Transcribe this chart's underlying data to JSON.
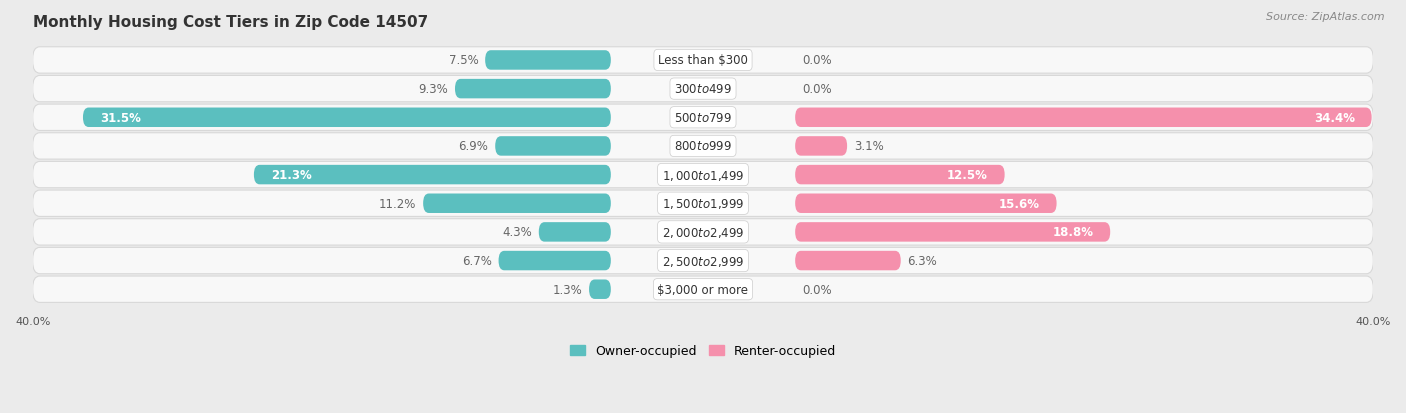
{
  "title": "Monthly Housing Cost Tiers in Zip Code 14507",
  "source": "Source: ZipAtlas.com",
  "categories": [
    "Less than $300",
    "$300 to $499",
    "$500 to $799",
    "$800 to $999",
    "$1,000 to $1,499",
    "$1,500 to $1,999",
    "$2,000 to $2,499",
    "$2,500 to $2,999",
    "$3,000 or more"
  ],
  "owner_values": [
    7.5,
    9.3,
    31.5,
    6.9,
    21.3,
    11.2,
    4.3,
    6.7,
    1.3
  ],
  "renter_values": [
    0.0,
    0.0,
    34.4,
    3.1,
    12.5,
    15.6,
    18.8,
    6.3,
    0.0
  ],
  "owner_color": "#5bbfbf",
  "renter_color": "#f590ac",
  "owner_color_dark": "#3aabab",
  "renter_color_dark": "#f060a0",
  "axis_max": 40.0,
  "bg_color": "#ebebeb",
  "row_bg_color": "#f8f8f8",
  "row_border_color": "#d8d8d8",
  "label_fontsize": 8.5,
  "category_fontsize": 8.5,
  "legend_fontsize": 9,
  "axis_label_fontsize": 8,
  "title_fontsize": 11,
  "source_fontsize": 8
}
